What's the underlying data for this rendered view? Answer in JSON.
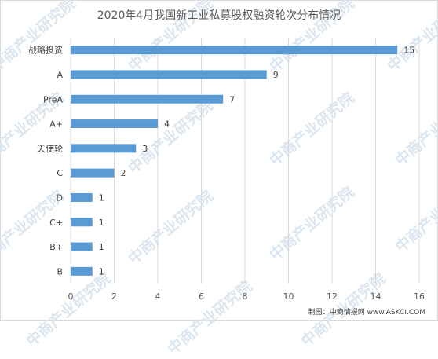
{
  "chart_data": {
    "type": "bar",
    "orientation": "horizontal",
    "title": "2020年4月我国新工业私募股权融资轮次分布情况",
    "categories": [
      "战略投资",
      "A",
      "PreA",
      "A+",
      "天使轮",
      "C",
      "D",
      "C+",
      "B+",
      "B"
    ],
    "values": [
      15,
      9,
      7,
      4,
      3,
      2,
      1,
      1,
      1,
      1
    ],
    "xlim": [
      0,
      16
    ],
    "xticks": [
      0,
      2,
      4,
      6,
      8,
      10,
      12,
      14,
      16
    ],
    "grid": "vertical",
    "data_labels": true,
    "bar_color": "#5b9bd5",
    "grid_color": "#d9d9d9",
    "xlabel": "",
    "ylabel": ""
  },
  "source_text": "制图：中商情报网 www.ASKCI.COM",
  "watermark": "中商产业研究院"
}
